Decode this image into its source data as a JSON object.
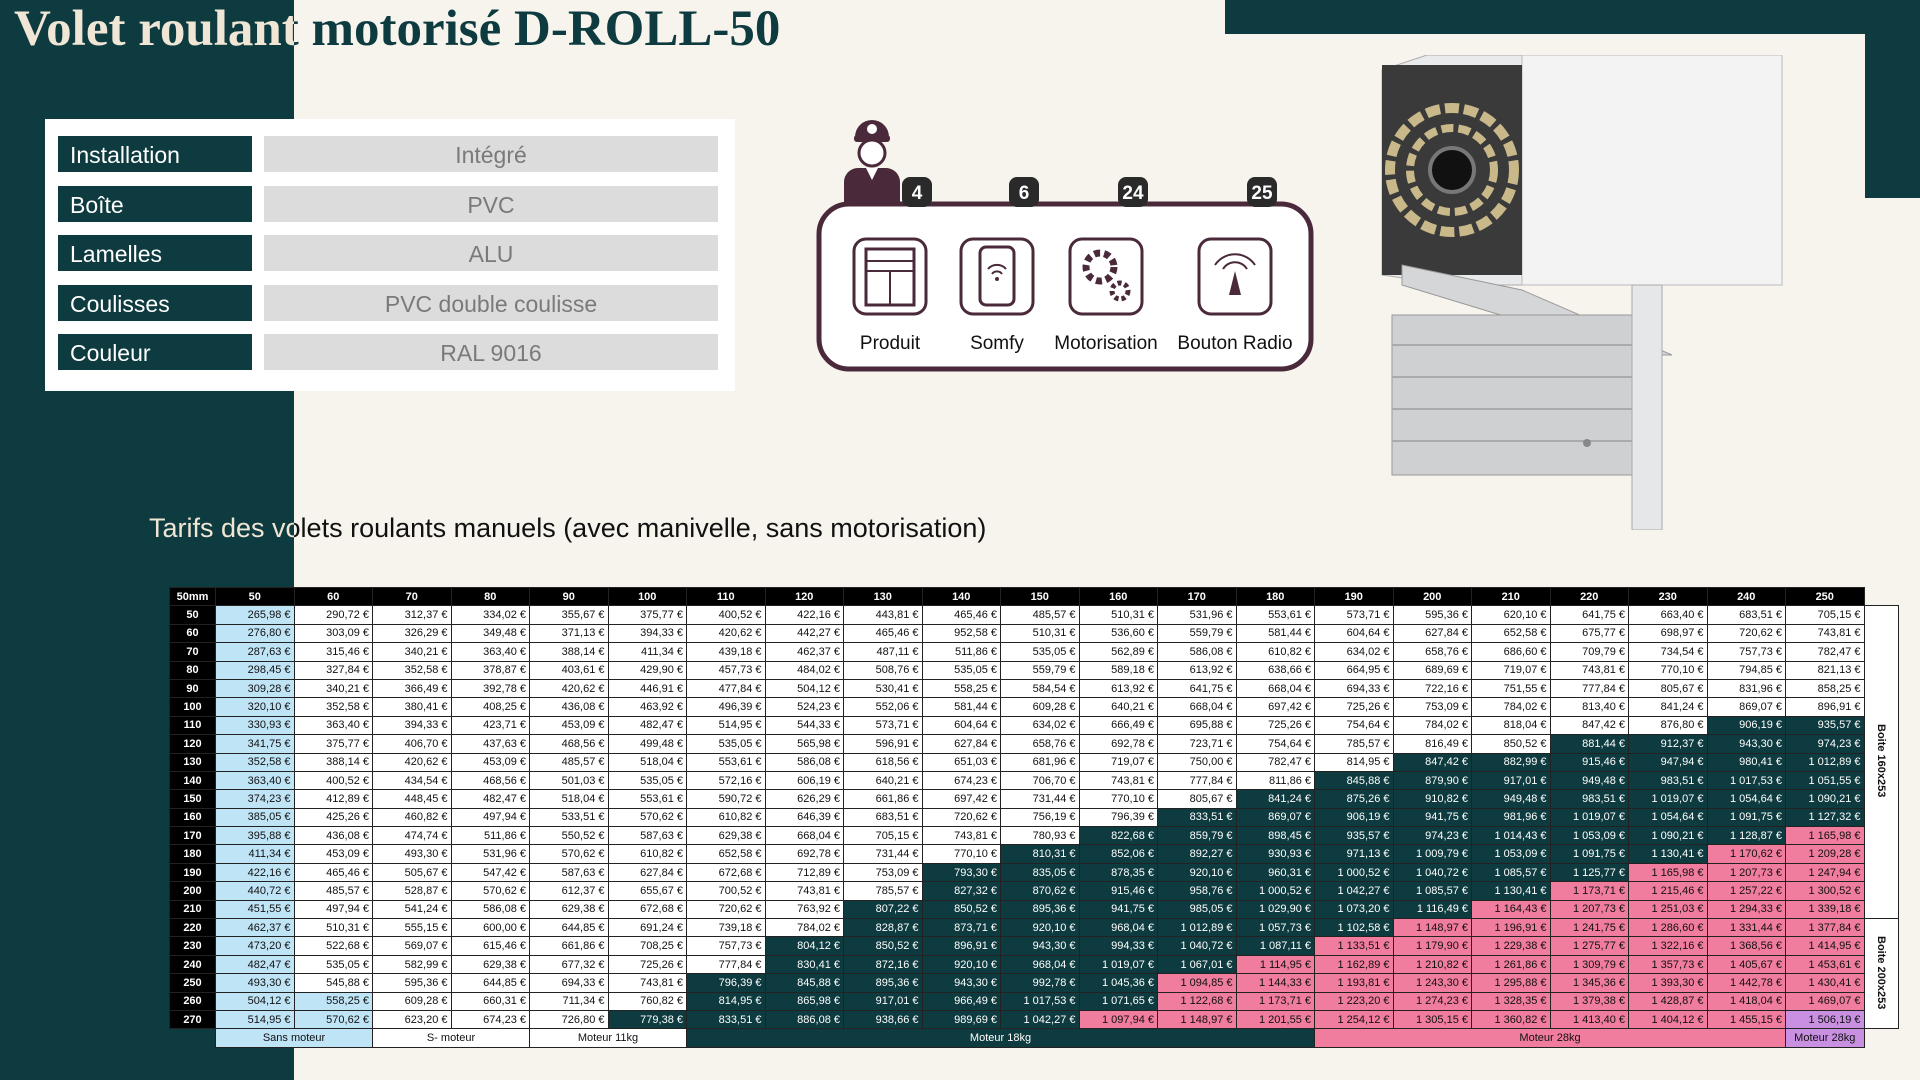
{
  "header": {
    "title": "Volet roulant motorisé D-ROLL-50"
  },
  "specs": [
    {
      "label": "Installation",
      "value": "Intégré"
    },
    {
      "label": "Boîte",
      "value": "PVC"
    },
    {
      "label": "Lamelles",
      "value": "ALU"
    },
    {
      "label": "Coulisses",
      "value": "PVC double coulisse"
    },
    {
      "label": "Couleur",
      "value": "RAL 9016"
    }
  ],
  "services": {
    "items": [
      {
        "label": "Produit",
        "count": 4
      },
      {
        "label": "Somfy",
        "count": 6
      },
      {
        "label": "Motorisation",
        "count": 24
      },
      {
        "label": "Bouton Radio",
        "count": 25
      }
    ]
  },
  "table": {
    "title": "Tarifs des volets roulants manuels (avec manivelle, sans motorisation)",
    "corner": "50mm",
    "colors": {
      "light": "#bfe4f6",
      "dark": "#0e3b3f",
      "pink": "#f07c9e",
      "purple": "#c98fe0"
    },
    "columns": [
      50,
      60,
      70,
      80,
      90,
      100,
      110,
      120,
      130,
      140,
      150,
      160,
      170,
      180,
      190,
      200,
      210,
      220,
      230,
      240,
      250
    ],
    "rows": [
      {
        "label": 50,
        "light_to": 50,
        "dark_from": null,
        "pink_from": null,
        "cells": [
          "265,98 €",
          "290,72 €",
          "312,37 €",
          "334,02 €",
          "355,67 €",
          "375,77 €",
          "400,52 €",
          "422,16 €",
          "443,81 €",
          "465,46 €",
          "485,57 €",
          "510,31 €",
          "531,96 €",
          "553,61 €",
          "573,71 €",
          "595,36 €",
          "620,10 €",
          "641,75 €",
          "663,40 €",
          "683,51 €",
          "705,15 €"
        ]
      },
      {
        "label": 60,
        "light_to": 50,
        "dark_from": null,
        "pink_from": null,
        "cells": [
          "276,80 €",
          "303,09 €",
          "326,29 €",
          "349,48 €",
          "371,13 €",
          "394,33 €",
          "420,62 €",
          "442,27 €",
          "465,46 €",
          "952,58 €",
          "510,31 €",
          "536,60 €",
          "559,79 €",
          "581,44 €",
          "604,64 €",
          "627,84 €",
          "652,58 €",
          "675,77 €",
          "698,97 €",
          "720,62 €",
          "743,81 €"
        ]
      },
      {
        "label": 70,
        "light_to": 50,
        "dark_from": null,
        "pink_from": null,
        "cells": [
          "287,63 €",
          "315,46 €",
          "340,21 €",
          "363,40 €",
          "388,14 €",
          "411,34 €",
          "439,18 €",
          "462,37 €",
          "487,11 €",
          "511,86 €",
          "535,05 €",
          "562,89 €",
          "586,08 €",
          "610,82 €",
          "634,02 €",
          "658,76 €",
          "686,60 €",
          "709,79 €",
          "734,54 €",
          "757,73 €",
          "782,47 €"
        ]
      },
      {
        "label": 80,
        "light_to": 50,
        "dark_from": null,
        "pink_from": null,
        "cells": [
          "298,45 €",
          "327,84 €",
          "352,58 €",
          "378,87 €",
          "403,61 €",
          "429,90 €",
          "457,73 €",
          "484,02 €",
          "508,76 €",
          "535,05 €",
          "559,79 €",
          "589,18 €",
          "613,92 €",
          "638,66 €",
          "664,95 €",
          "689,69 €",
          "719,07 €",
          "743,81 €",
          "770,10 €",
          "794,85 €",
          "821,13 €"
        ]
      },
      {
        "label": 90,
        "light_to": 50,
        "dark_from": null,
        "pink_from": null,
        "cells": [
          "309,28 €",
          "340,21 €",
          "366,49 €",
          "392,78 €",
          "420,62 €",
          "446,91 €",
          "477,84 €",
          "504,12 €",
          "530,41 €",
          "558,25 €",
          "584,54 €",
          "613,92 €",
          "641,75 €",
          "668,04 €",
          "694,33 €",
          "722,16 €",
          "751,55 €",
          "777,84 €",
          "805,67 €",
          "831,96 €",
          "858,25 €"
        ]
      },
      {
        "label": 100,
        "light_to": 50,
        "dark_from": null,
        "pink_from": null,
        "cells": [
          "320,10 €",
          "352,58 €",
          "380,41 €",
          "408,25 €",
          "436,08 €",
          "463,92 €",
          "496,39 €",
          "524,23 €",
          "552,06 €",
          "581,44 €",
          "609,28 €",
          "640,21 €",
          "668,04 €",
          "697,42 €",
          "725,26 €",
          "753,09 €",
          "784,02 €",
          "813,40 €",
          "841,24 €",
          "869,07 €",
          "896,91 €"
        ]
      },
      {
        "label": 110,
        "light_to": 50,
        "dark_from": 240,
        "pink_from": null,
        "cells": [
          "330,93 €",
          "363,40 €",
          "394,33 €",
          "423,71 €",
          "453,09 €",
          "482,47 €",
          "514,95 €",
          "544,33 €",
          "573,71 €",
          "604,64 €",
          "634,02 €",
          "666,49 €",
          "695,88 €",
          "725,26 €",
          "754,64 €",
          "784,02 €",
          "818,04 €",
          "847,42 €",
          "876,80 €",
          "906,19 €",
          "935,57 €"
        ]
      },
      {
        "label": 120,
        "light_to": 50,
        "dark_from": 220,
        "pink_from": null,
        "cells": [
          "341,75 €",
          "375,77 €",
          "406,70 €",
          "437,63 €",
          "468,56 €",
          "499,48 €",
          "535,05 €",
          "565,98 €",
          "596,91 €",
          "627,84 €",
          "658,76 €",
          "692,78 €",
          "723,71 €",
          "754,64 €",
          "785,57 €",
          "816,49 €",
          "850,52 €",
          "881,44 €",
          "912,37 €",
          "943,30 €",
          "974,23 €"
        ]
      },
      {
        "label": 130,
        "light_to": 50,
        "dark_from": 200,
        "pink_from": null,
        "cells": [
          "352,58 €",
          "388,14 €",
          "420,62 €",
          "453,09 €",
          "485,57 €",
          "518,04 €",
          "553,61 €",
          "586,08 €",
          "618,56 €",
          "651,03 €",
          "681,96 €",
          "719,07 €",
          "750,00 €",
          "782,47 €",
          "814,95 €",
          "847,42 €",
          "882,99 €",
          "915,46 €",
          "947,94 €",
          "980,41 €",
          "1 012,89 €"
        ]
      },
      {
        "label": 140,
        "light_to": 50,
        "dark_from": 190,
        "pink_from": null,
        "cells": [
          "363,40 €",
          "400,52 €",
          "434,54 €",
          "468,56 €",
          "501,03 €",
          "535,05 €",
          "572,16 €",
          "606,19 €",
          "640,21 €",
          "674,23 €",
          "706,70 €",
          "743,81 €",
          "777,84 €",
          "811,86 €",
          "845,88 €",
          "879,90 €",
          "917,01 €",
          "949,48 €",
          "983,51 €",
          "1 017,53 €",
          "1 051,55 €"
        ]
      },
      {
        "label": 150,
        "light_to": 50,
        "dark_from": 180,
        "pink_from": null,
        "cells": [
          "374,23 €",
          "412,89 €",
          "448,45 €",
          "482,47 €",
          "518,04 €",
          "553,61 €",
          "590,72 €",
          "626,29 €",
          "661,86 €",
          "697,42 €",
          "731,44 €",
          "770,10 €",
          "805,67 €",
          "841,24 €",
          "875,26 €",
          "910,82 €",
          "949,48 €",
          "983,51 €",
          "1 019,07 €",
          "1 054,64 €",
          "1 090,21 €"
        ]
      },
      {
        "label": 160,
        "light_to": 50,
        "dark_from": 170,
        "pink_from": null,
        "cells": [
          "385,05 €",
          "425,26 €",
          "460,82 €",
          "497,94 €",
          "533,51 €",
          "570,62 €",
          "610,82 €",
          "646,39 €",
          "683,51 €",
          "720,62 €",
          "756,19 €",
          "796,39 €",
          "833,51 €",
          "869,07 €",
          "906,19 €",
          "941,75 €",
          "981,96 €",
          "1 019,07 €",
          "1 054,64 €",
          "1 091,75 €",
          "1 127,32 €"
        ]
      },
      {
        "label": 170,
        "light_to": 50,
        "dark_from": 160,
        "pink_from": 250,
        "cells": [
          "395,88 €",
          "436,08 €",
          "474,74 €",
          "511,86 €",
          "550,52 €",
          "587,63 €",
          "629,38 €",
          "668,04 €",
          "705,15 €",
          "743,81 €",
          "780,93 €",
          "822,68 €",
          "859,79 €",
          "898,45 €",
          "935,57 €",
          "974,23 €",
          "1 014,43 €",
          "1 053,09 €",
          "1 090,21 €",
          "1 128,87 €",
          "1 165,98 €"
        ]
      },
      {
        "label": 180,
        "light_to": 50,
        "dark_from": 150,
        "pink_from": 240,
        "cells": [
          "411,34 €",
          "453,09 €",
          "493,30 €",
          "531,96 €",
          "570,62 €",
          "610,82 €",
          "652,58 €",
          "692,78 €",
          "731,44 €",
          "770,10 €",
          "810,31 €",
          "852,06 €",
          "892,27 €",
          "930,93 €",
          "971,13 €",
          "1 009,79 €",
          "1 053,09 €",
          "1 091,75 €",
          "1 130,41 €",
          "1 170,62 €",
          "1 209,28 €"
        ]
      },
      {
        "label": 190,
        "light_to": 50,
        "dark_from": 140,
        "pink_from": 230,
        "cells": [
          "422,16 €",
          "465,46 €",
          "505,67 €",
          "547,42 €",
          "587,63 €",
          "627,84 €",
          "672,68 €",
          "712,89 €",
          "753,09 €",
          "793,30 €",
          "835,05 €",
          "878,35 €",
          "920,10 €",
          "960,31 €",
          "1 000,52 €",
          "1 040,72 €",
          "1 085,57 €",
          "1 125,77 €",
          "1 165,98 €",
          "1 207,73 €",
          "1 247,94 €"
        ]
      },
      {
        "label": 200,
        "light_to": 50,
        "dark_from": 140,
        "pink_from": 220,
        "cells": [
          "440,72 €",
          "485,57 €",
          "528,87 €",
          "570,62 €",
          "612,37 €",
          "655,67 €",
          "700,52 €",
          "743,81 €",
          "785,57 €",
          "827,32 €",
          "870,62 €",
          "915,46 €",
          "958,76 €",
          "1 000,52 €",
          "1 042,27 €",
          "1 085,57 €",
          "1 130,41 €",
          "1 173,71 €",
          "1 215,46 €",
          "1 257,22 €",
          "1 300,52 €"
        ]
      },
      {
        "label": 210,
        "light_to": 50,
        "dark_from": 130,
        "pink_from": 210,
        "cells": [
          "451,55 €",
          "497,94 €",
          "541,24 €",
          "586,08 €",
          "629,38 €",
          "672,68 €",
          "720,62 €",
          "763,92 €",
          "807,22 €",
          "850,52 €",
          "895,36 €",
          "941,75 €",
          "985,05 €",
          "1 029,90 €",
          "1 073,20 €",
          "1 116,49 €",
          "1 164,43 €",
          "1 207,73 €",
          "1 251,03 €",
          "1 294,33 €",
          "1 339,18 €"
        ]
      },
      {
        "label": 220,
        "light_to": 50,
        "dark_from": 130,
        "pink_from": 200,
        "cells": [
          "462,37 €",
          "510,31 €",
          "555,15 €",
          "600,00 €",
          "644,85 €",
          "691,24 €",
          "739,18 €",
          "784,02 €",
          "828,87 €",
          "873,71 €",
          "920,10 €",
          "968,04 €",
          "1 012,89 €",
          "1 057,73 €",
          "1 102,58 €",
          "1 148,97 €",
          "1 196,91 €",
          "1 241,75 €",
          "1 286,60 €",
          "1 331,44 €",
          "1 377,84 €"
        ]
      },
      {
        "label": 230,
        "light_to": 50,
        "dark_from": 120,
        "pink_from": 190,
        "cells": [
          "473,20 €",
          "522,68 €",
          "569,07 €",
          "615,46 €",
          "661,86 €",
          "708,25 €",
          "757,73 €",
          "804,12 €",
          "850,52 €",
          "896,91 €",
          "943,30 €",
          "994,33 €",
          "1 040,72 €",
          "1 087,11 €",
          "1 133,51 €",
          "1 179,90 €",
          "1 229,38 €",
          "1 275,77 €",
          "1 322,16 €",
          "1 368,56 €",
          "1 414,95 €"
        ]
      },
      {
        "label": 240,
        "light_to": 50,
        "dark_from": 120,
        "pink_from": 180,
        "cells": [
          "482,47 €",
          "535,05 €",
          "582,99 €",
          "629,38 €",
          "677,32 €",
          "725,26 €",
          "777,84 €",
          "830,41 €",
          "872,16 €",
          "920,10 €",
          "968,04 €",
          "1 019,07 €",
          "1 067,01 €",
          "1 114,95 €",
          "1 162,89 €",
          "1 210,82 €",
          "1 261,86 €",
          "1 309,79 €",
          "1 357,73 €",
          "1 405,67 €",
          "1 453,61 €"
        ]
      },
      {
        "label": 250,
        "light_to": 50,
        "dark_from": 110,
        "pink_from": 170,
        "cells": [
          "493,30 €",
          "545,88 €",
          "595,36 €",
          "644,85 €",
          "694,33 €",
          "743,81 €",
          "796,39 €",
          "845,88 €",
          "895,36 €",
          "943,30 €",
          "992,78 €",
          "1 045,36 €",
          "1 094,85 €",
          "1 144,33 €",
          "1 193,81 €",
          "1 243,30 €",
          "1 295,88 €",
          "1 345,36 €",
          "1 393,30 €",
          "1 442,78 €",
          "1 430,41 €"
        ]
      },
      {
        "label": 260,
        "light_to": 60,
        "dark_from": 110,
        "pink_from": 170,
        "cells": [
          "504,12 €",
          "558,25 €",
          "609,28 €",
          "660,31 €",
          "711,34 €",
          "760,82 €",
          "814,95 €",
          "865,98 €",
          "917,01 €",
          "966,49 €",
          "1 017,53 €",
          "1 071,65 €",
          "1 122,68 €",
          "1 173,71 €",
          "1 223,20 €",
          "1 274,23 €",
          "1 328,35 €",
          "1 379,38 €",
          "1 428,87 €",
          "1 418,04 €",
          "1 469,07 €"
        ]
      },
      {
        "label": 270,
        "light_to": 60,
        "dark_from": 100,
        "pink_from": 160,
        "purple_from": 250,
        "cells": [
          "514,95 €",
          "570,62 €",
          "623,20 €",
          "674,23 €",
          "726,80 €",
          "779,38 €",
          "833,51 €",
          "886,08 €",
          "938,66 €",
          "989,69 €",
          "1 042,27 €",
          "1 097,94 €",
          "1 148,97 €",
          "1 201,55 €",
          "1 254,12 €",
          "1 305,15 €",
          "1 360,82 €",
          "1 413,40 €",
          "1 404,12 €",
          "1 455,15 €",
          "1 506,19 €"
        ]
      }
    ],
    "groups": [
      {
        "label": "Boite 160x253",
        "from": 50,
        "to": 210
      },
      {
        "label": "Boite 200x253",
        "from": 220,
        "to": 270
      }
    ],
    "footer": [
      {
        "label": "Sans moteur",
        "from": 50,
        "to": 60,
        "color": "#bfe4f6"
      },
      {
        "label": "S- moteur",
        "from": 70,
        "to": 80,
        "color": "#ffffff"
      },
      {
        "label": "Moteur 11kg",
        "from": 90,
        "to": 100,
        "color": "#ffffff"
      },
      {
        "label": "Moteur 18kg",
        "from": 110,
        "to": 180,
        "color": "#0e3b3f"
      },
      {
        "label": "Moteur 28kg",
        "from": 190,
        "to": 240,
        "color": "#f07c9e"
      },
      {
        "label": "Moteur 28kg",
        "from": 250,
        "to": 250,
        "color": "#c98fe0"
      }
    ]
  }
}
